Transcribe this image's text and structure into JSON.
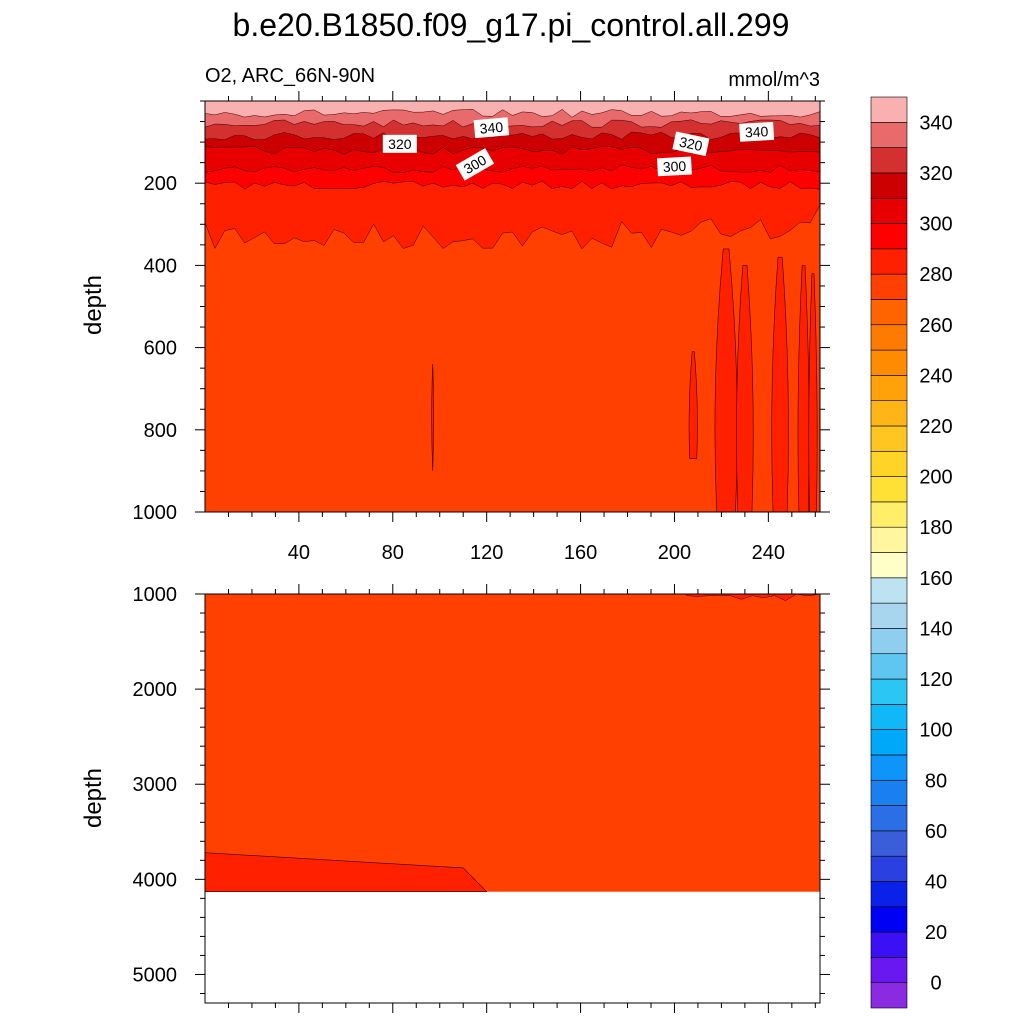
{
  "chart_data": {
    "type": "contour",
    "title": "b.e20.B1850.f09_g17.pi_control.all.299",
    "left_subtitle": "O2, ARC_66N-90N",
    "right_subtitle": "mmol/m^3",
    "xlabel": "",
    "ylabel": "depth",
    "xlim": [
      0,
      262
    ],
    "x_ticks": [
      40,
      80,
      120,
      160,
      200,
      240
    ],
    "panels": [
      {
        "name": "upper",
        "ylim": [
          0,
          1000
        ],
        "y_reversed": true,
        "y_ticks": [
          200,
          400,
          600,
          800,
          1000
        ],
        "dominant_level": 280,
        "bands": [
          {
            "from_depth": 0,
            "to_depth": 30,
            "level": 350
          },
          {
            "from_depth": 30,
            "to_depth": 55,
            "level": 340
          },
          {
            "from_depth": 55,
            "to_depth": 85,
            "level": 330
          },
          {
            "from_depth": 85,
            "to_depth": 120,
            "level": 320
          },
          {
            "from_depth": 120,
            "to_depth": 165,
            "level": 310
          },
          {
            "from_depth": 165,
            "to_depth": 205,
            "level": 300
          },
          {
            "from_depth": 205,
            "to_depth": 330,
            "level": 290
          }
        ],
        "contour_labels": [
          {
            "text": "340",
            "x": 122,
            "depth": 65,
            "angle": -5
          },
          {
            "text": "320",
            "x": 83,
            "depth": 165,
            "angle": 0
          },
          {
            "text": "320",
            "x": 207,
            "depth": 165,
            "angle": 12
          },
          {
            "text": "340",
            "x": 235,
            "depth": 75,
            "angle": -3
          },
          {
            "text": "300",
            "x": 115,
            "depth": 215,
            "angle": -30
          },
          {
            "text": "300",
            "x": 200,
            "depth": 220,
            "angle": -3
          }
        ]
      },
      {
        "name": "lower",
        "ylim": [
          1000,
          5300
        ],
        "y_reversed": true,
        "y_ticks": [
          1000,
          2000,
          3000,
          4000,
          5000
        ],
        "dominant_level": 280,
        "bottom_depth": 4130,
        "patches": [
          {
            "level": 290,
            "description_points": [
              [
                0,
                3720
              ],
              [
                110,
                3880
              ],
              [
                120,
                4130
              ],
              [
                0,
                4130
              ]
            ]
          }
        ]
      }
    ],
    "colorbar": {
      "levels": [
        0,
        10,
        20,
        30,
        40,
        50,
        60,
        70,
        80,
        90,
        100,
        110,
        120,
        130,
        140,
        150,
        160,
        170,
        180,
        190,
        200,
        210,
        220,
        230,
        240,
        250,
        260,
        270,
        280,
        290,
        300,
        310,
        320,
        330,
        340,
        350
      ],
      "labels": [
        "0",
        "20",
        "40",
        "60",
        "80",
        "100",
        "120",
        "140",
        "160",
        "180",
        "200",
        "220",
        "240",
        "260",
        "280",
        "300",
        "320",
        "340"
      ],
      "colors": [
        "#8A2BE2",
        "#6A18F0",
        "#3B10F5",
        "#0000F5",
        "#0A22E8",
        "#2A40E0",
        "#3A5EDA",
        "#2B6FE6",
        "#1A80F0",
        "#0F94FA",
        "#00A8FA",
        "#10B8F8",
        "#2CC6F5",
        "#5EC6F0",
        "#8ECEEF",
        "#A8D6EE",
        "#BDE2F2",
        "#FFFFC7",
        "#FFF69E",
        "#FFEE6A",
        "#FFE135",
        "#FFD426",
        "#FFC520",
        "#FFB515",
        "#FFA20A",
        "#FF8C00",
        "#FF7A00",
        "#FF6400",
        "#FF4000",
        "#FF2000",
        "#FF0000",
        "#E80000",
        "#CC0000",
        "#D43030",
        "#E86A6A",
        "#F9B0B0"
      ]
    }
  }
}
